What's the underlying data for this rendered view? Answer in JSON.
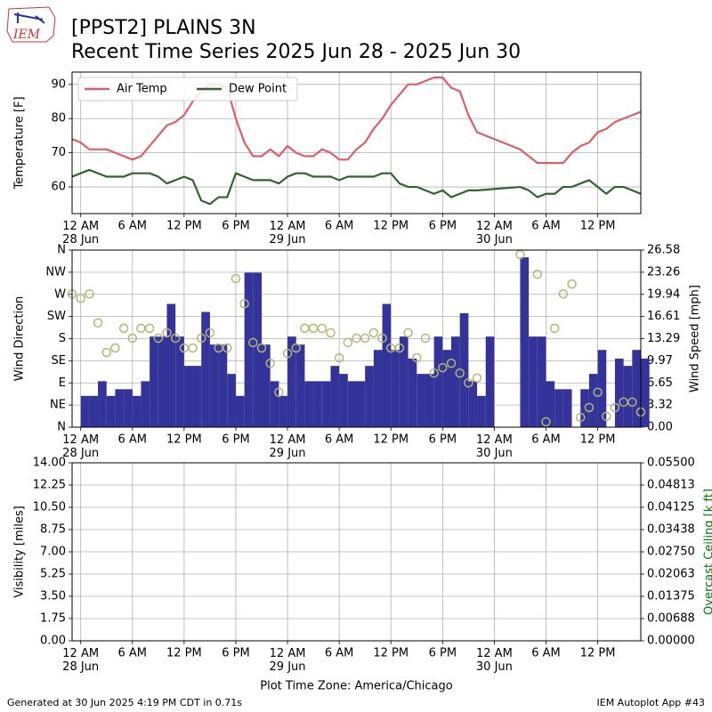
{
  "logo_text": "IEM",
  "footer": {
    "generated": "Generated at 30 Jun 2025 4:19 PM CDT in 0.71s",
    "app": "IEM Autoplot App #43"
  },
  "chart_data": [
    {
      "type": "line",
      "title": "[PPST2] PLAINS 3N",
      "subtitle": "Recent Time Series 2025 Jun 28 - 2025 Jun 30",
      "ylabel": "Temperature [F]",
      "grid": true,
      "legend": "upper left",
      "x": [
        -1,
        0,
        1,
        2,
        3,
        4,
        5,
        6,
        7,
        8,
        9,
        10,
        11,
        12,
        13,
        14,
        15,
        16,
        17,
        18,
        19,
        20,
        21,
        22,
        23,
        24,
        25,
        26,
        27,
        28,
        29,
        30,
        31,
        32,
        33,
        34,
        35,
        36,
        37,
        38,
        39,
        40,
        41,
        42,
        43,
        44,
        45,
        46,
        47,
        48,
        49,
        50,
        51,
        52,
        53,
        54,
        55,
        56,
        57,
        58,
        59,
        60,
        61,
        62,
        63,
        64,
        65
      ],
      "xlim": [
        -1,
        65
      ],
      "xticks": [
        {
          "value": 0,
          "label": "12 AM\n28 Jun"
        },
        {
          "value": 6,
          "label": "6 AM"
        },
        {
          "value": 12,
          "label": "12 PM"
        },
        {
          "value": 18,
          "label": "6 PM"
        },
        {
          "value": 24,
          "label": "12 AM\n29 Jun"
        },
        {
          "value": 30,
          "label": "6 AM"
        },
        {
          "value": 36,
          "label": "12 PM"
        },
        {
          "value": 42,
          "label": "6 PM"
        },
        {
          "value": 48,
          "label": "12 AM\n30 Jun"
        },
        {
          "value": 54,
          "label": "6 AM"
        },
        {
          "value": 60,
          "label": "12 PM"
        }
      ],
      "ylim": [
        52.2,
        93.6
      ],
      "yticks": [
        60,
        70,
        80,
        90
      ],
      "series": [
        {
          "name": "Air Temp",
          "color": "#da5f67",
          "values": [
            74,
            73,
            71,
            71,
            71,
            70,
            69,
            68,
            69,
            72,
            75,
            78,
            79,
            81,
            85,
            88,
            90,
            90,
            89,
            80,
            73,
            69,
            69,
            71,
            69,
            72,
            70,
            69,
            69,
            71,
            70,
            68,
            68,
            71,
            73,
            77,
            80,
            84,
            87,
            90,
            90,
            91,
            92,
            92,
            89,
            88,
            81,
            76,
            75,
            74,
            73,
            72,
            71,
            69,
            67,
            67,
            67,
            67,
            70,
            72,
            73,
            76,
            77,
            79,
            80,
            81,
            82
          ]
        },
        {
          "name": "Dew Point",
          "color": "#33622f",
          "values": [
            63,
            64,
            65,
            64,
            63,
            63,
            63,
            64,
            64,
            64,
            63,
            61,
            62,
            63,
            62,
            56,
            55,
            57,
            57,
            64,
            63,
            62,
            62,
            62,
            61,
            63,
            64,
            64,
            63,
            63,
            63,
            62,
            63,
            63,
            63,
            63,
            64,
            64,
            61,
            60,
            60,
            59,
            58,
            59,
            57,
            58,
            59,
            59,
            59.2,
            59.4,
            59.6,
            59.8,
            60,
            59,
            57,
            58,
            58,
            60,
            60,
            61,
            62,
            60,
            58,
            60,
            60,
            59,
            58
          ]
        }
      ]
    },
    {
      "type": "combo",
      "ylabel": "Wind Direction",
      "y2label": "Wind Speed [mph]",
      "grid": true,
      "x": [
        -1,
        0,
        1,
        2,
        3,
        4,
        5,
        6,
        7,
        8,
        9,
        10,
        11,
        12,
        13,
        14,
        15,
        16,
        17,
        18,
        19,
        20,
        21,
        22,
        23,
        24,
        25,
        26,
        27,
        28,
        29,
        30,
        31,
        32,
        33,
        34,
        35,
        36,
        37,
        38,
        39,
        40,
        41,
        42,
        43,
        44,
        45,
        46,
        47,
        48,
        49,
        50,
        51,
        52,
        53,
        54,
        55,
        56,
        57,
        58,
        59,
        60,
        61,
        62,
        63,
        64,
        65
      ],
      "xlim": [
        -1,
        65
      ],
      "xticks": [
        {
          "value": 0,
          "label": "12 AM\n28 Jun"
        },
        {
          "value": 6,
          "label": "6 AM"
        },
        {
          "value": 12,
          "label": "12 PM"
        },
        {
          "value": 18,
          "label": "6 PM"
        },
        {
          "value": 24,
          "label": "12 AM\n29 Jun"
        },
        {
          "value": 30,
          "label": "6 AM"
        },
        {
          "value": 36,
          "label": "12 PM"
        },
        {
          "value": 42,
          "label": "6 PM"
        },
        {
          "value": 48,
          "label": "12 AM\n30 Jun"
        },
        {
          "value": 54,
          "label": "6 AM"
        },
        {
          "value": 60,
          "label": "12 PM"
        }
      ],
      "ylim": [
        0,
        360
      ],
      "yticks": [
        {
          "value": 0,
          "label": "N"
        },
        {
          "value": 45,
          "label": "NE"
        },
        {
          "value": 90,
          "label": "E"
        },
        {
          "value": 135,
          "label": "SE"
        },
        {
          "value": 180,
          "label": "S"
        },
        {
          "value": 225,
          "label": "SW"
        },
        {
          "value": 270,
          "label": "W"
        },
        {
          "value": 315,
          "label": "NW"
        },
        {
          "value": 360,
          "label": "N"
        }
      ],
      "y2lim": [
        0,
        26.58
      ],
      "y2ticks": [
        {
          "value": 0,
          "label": "0.00"
        },
        {
          "value": 3.3225,
          "label": "3.32"
        },
        {
          "value": 6.645,
          "label": "6.65"
        },
        {
          "value": 9.9675,
          "label": "9.97"
        },
        13.29,
        {
          "value": 16.6125,
          "label": "16.61"
        },
        {
          "value": 19.935,
          "label": "19.94"
        },
        {
          "value": 23.2575,
          "label": "23.26"
        },
        26.58
      ],
      "series": [
        {
          "type": "bar",
          "axis": "y2",
          "color": "#333399",
          "values": [
            null,
            4.7,
            4.7,
            6.9,
            4.7,
            5.7,
            5.7,
            4.7,
            6.9,
            13.6,
            13.6,
            18.5,
            13.6,
            9.2,
            9.2,
            17.3,
            12.4,
            12.4,
            8.0,
            4.7,
            23.2,
            23.2,
            12.4,
            6.9,
            4.7,
            13.6,
            12.4,
            6.9,
            6.9,
            6.9,
            9.2,
            8.0,
            6.9,
            6.9,
            9.2,
            11.6,
            18.5,
            11.6,
            13.6,
            10.3,
            8.0,
            8.0,
            13.6,
            11.6,
            13.6,
            17.1,
            6.9,
            4.7,
            13.6,
            null,
            null,
            null,
            25.5,
            13.6,
            13.6,
            6.9,
            5.7,
            5.7,
            null,
            5.7,
            8.0,
            11.6,
            null,
            10.3,
            9.2,
            11.6,
            10.3
          ]
        },
        {
          "type": "scatter",
          "axis": "y",
          "color": "#b5b578",
          "values": [
            271,
            262,
            271,
            212,
            152,
            161,
            201,
            181,
            201,
            201,
            181,
            192,
            181,
            161,
            161,
            181,
            192,
            161,
            161,
            302,
            251,
            172,
            161,
            130,
            71,
            150,
            161,
            201,
            201,
            201,
            192,
            141,
            172,
            181,
            181,
            192,
            181,
            161,
            161,
            192,
            141,
            181,
            110,
            121,
            130,
            110,
            90,
            100,
            null,
            null,
            null,
            null,
            351,
            null,
            311,
            11,
            201,
            271,
            291,
            20,
            40,
            71,
            22,
            40,
            51,
            51,
            31
          ]
        }
      ]
    },
    {
      "type": "line",
      "ylabel": "Visibility [miles]",
      "y2label": "Overcast Ceiling [k ft]",
      "y2label_color": "#008000",
      "grid": true,
      "xlabel": "Plot Time Zone: America/Chicago",
      "xlim": [
        -1,
        65
      ],
      "xticks": [
        {
          "value": 0,
          "label": "12 AM\n28 Jun"
        },
        {
          "value": 6,
          "label": "6 AM"
        },
        {
          "value": 12,
          "label": "12 PM"
        },
        {
          "value": 18,
          "label": "6 PM"
        },
        {
          "value": 24,
          "label": "12 AM\n29 Jun"
        },
        {
          "value": 30,
          "label": "6 AM"
        },
        {
          "value": 36,
          "label": "12 PM"
        },
        {
          "value": 42,
          "label": "6 PM"
        },
        {
          "value": 48,
          "label": "12 AM\n30 Jun"
        },
        {
          "value": 54,
          "label": "6 AM"
        },
        {
          "value": 60,
          "label": "12 PM"
        }
      ],
      "ylim": [
        0,
        14
      ],
      "yticks": [
        {
          "value": 0,
          "label": "0.00"
        },
        {
          "value": 1.75,
          "label": "1.75"
        },
        {
          "value": 3.5,
          "label": "3.50"
        },
        {
          "value": 5.25,
          "label": "5.25"
        },
        {
          "value": 7,
          "label": "7.00"
        },
        {
          "value": 8.75,
          "label": "8.75"
        },
        {
          "value": 10.5,
          "label": "10.50"
        },
        {
          "value": 12.25,
          "label": "12.25"
        },
        {
          "value": 14,
          "label": "14.00"
        }
      ],
      "y2lim": [
        0,
        0.055
      ],
      "y2ticks": [
        {
          "value": 0,
          "label": "0.00000"
        },
        {
          "value": 0.006875,
          "label": "0.00688"
        },
        {
          "value": 0.01375,
          "label": "0.01375"
        },
        {
          "value": 0.020625,
          "label": "0.02063"
        },
        {
          "value": 0.0275,
          "label": "0.02750"
        },
        {
          "value": 0.034375,
          "label": "0.03438"
        },
        {
          "value": 0.04125,
          "label": "0.04125"
        },
        {
          "value": 0.048125,
          "label": "0.04813"
        },
        {
          "value": 0.055,
          "label": "0.05500"
        }
      ],
      "series": []
    }
  ]
}
